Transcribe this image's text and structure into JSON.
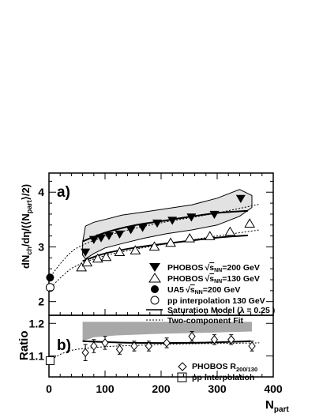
{
  "chart_data": [
    {
      "type": "scatter",
      "panel_label": "a)",
      "xlabel": "N",
      "xlabel_sub": "part",
      "ylabel": "dN",
      "ylabel_sub1": "ch",
      "ylabel_mid": "/dη/(⟨N",
      "ylabel_sub2": "part",
      "ylabel_end": "⟩/2)",
      "xlim": [
        0,
        400
      ],
      "ylim": [
        1.75,
        4.35
      ],
      "xticks": [
        0,
        100,
        200,
        300,
        400
      ],
      "yticks": [
        2,
        3,
        4
      ],
      "series": [
        {
          "name": "PHOBOS",
          "name_sqrt": "s",
          "name_sub": "NN",
          "name_tail": "=200 GeV",
          "marker": "triangle-down-filled",
          "x": [
            65,
            80,
            93,
            107,
            126,
            146,
            167,
            193,
            220,
            254,
            295,
            342
          ],
          "y": [
            2.9,
            3.13,
            3.16,
            3.2,
            3.23,
            3.31,
            3.35,
            3.43,
            3.48,
            3.54,
            3.59,
            3.88
          ]
        },
        {
          "name": "PHOBOS",
          "name_sqrt": "s",
          "name_sub": "NN",
          "name_tail": "=130 GeV",
          "marker": "triangle-up-open",
          "x": [
            58,
            68,
            87,
            102,
            126,
            154,
            188,
            217,
            251,
            287,
            323,
            358
          ],
          "y": [
            2.63,
            2.72,
            2.79,
            2.82,
            2.91,
            2.94,
            3.01,
            3.08,
            3.16,
            3.2,
            3.28,
            3.43
          ]
        },
        {
          "name": "UA5",
          "name_sqrt": "s",
          "name_sub": "NN",
          "name_tail": "=200 GeV",
          "marker": "circle-filled",
          "x": [
            2
          ],
          "y": [
            2.44
          ]
        },
        {
          "name": "pp interpolation 130 GeV",
          "marker": "circle-open",
          "x": [
            2
          ],
          "y": [
            2.26
          ]
        },
        {
          "name": "Saturation Model (λ = 0.25 )",
          "style": "solid",
          "curves": [
            {
              "x": [
                60,
                100,
                150,
                200,
                250,
                300,
                355
              ],
              "y": [
                3.1,
                3.26,
                3.39,
                3.47,
                3.55,
                3.62,
                3.66
              ]
            },
            {
              "x": [
                60,
                100,
                150,
                200,
                250,
                300,
                355
              ],
              "y": [
                2.74,
                2.88,
                2.98,
                3.05,
                3.11,
                3.17,
                3.21
              ]
            }
          ]
        },
        {
          "name": "Two-component Fit",
          "style": "dashed",
          "curves": [
            {
              "x": [
                0,
                25,
                50,
                100,
                150,
                200,
                250,
                300,
                375
              ],
              "y": [
                2.42,
                2.75,
                2.98,
                3.19,
                3.33,
                3.44,
                3.53,
                3.62,
                3.78
              ]
            },
            {
              "x": [
                0,
                25,
                50,
                100,
                150,
                200,
                250,
                300,
                375
              ],
              "y": [
                2.22,
                2.48,
                2.66,
                2.84,
                2.95,
                3.04,
                3.12,
                3.2,
                3.31
              ]
            }
          ]
        }
      ],
      "error_band": {
        "x": [
          60,
          65,
          80,
          100,
          130,
          170,
          210,
          255,
          300,
          340,
          362
        ],
        "low": [
          2.85,
          2.78,
          2.88,
          2.98,
          3.06,
          3.16,
          3.24,
          3.31,
          3.4,
          3.56,
          3.72
        ],
        "high": [
          3.08,
          3.38,
          3.45,
          3.5,
          3.58,
          3.64,
          3.7,
          3.77,
          3.89,
          4.05,
          3.94
        ]
      },
      "legend_position": "bottom-right"
    },
    {
      "type": "scatter",
      "panel_label": "b)",
      "ylabel": "Ratio",
      "xlim": [
        0,
        400
      ],
      "ylim": [
        1.035,
        1.225
      ],
      "yticks": [
        1.1,
        1.2
      ],
      "xticks": [
        0,
        100,
        200,
        300,
        400
      ],
      "series": [
        {
          "name": "PHOBOS R",
          "name_sub": "200/130",
          "marker": "diamond-open",
          "x": [
            65,
            80,
            100,
            126,
            152,
            178,
            210,
            255,
            295,
            325,
            362
          ],
          "y": [
            1.11,
            1.13,
            1.14,
            1.12,
            1.13,
            1.13,
            1.14,
            1.16,
            1.15,
            1.15,
            1.13
          ],
          "err": [
            0.025,
            0.02,
            0.02,
            0.015,
            0.015,
            0.015,
            0.015,
            0.015,
            0.015,
            0.015,
            0.015
          ]
        },
        {
          "name": "pp interpolation",
          "marker": "square-open",
          "x": [
            2
          ],
          "y": [
            1.085
          ]
        },
        {
          "name": "Saturation Model",
          "style": "solid",
          "x": [
            60,
            150,
            250,
            360
          ],
          "y": [
            1.145,
            1.14,
            1.14,
            1.145
          ]
        },
        {
          "name": "Two-component Fit",
          "style": "dashed",
          "x": [
            0,
            25,
            50,
            100,
            150,
            200,
            250,
            300,
            375
          ],
          "y": [
            1.085,
            1.108,
            1.12,
            1.128,
            1.132,
            1.135,
            1.137,
            1.138,
            1.14
          ]
        }
      ],
      "error_band": {
        "x": [
          60,
          80,
          120,
          200,
          300,
          362
        ],
        "low": [
          1.145,
          1.157,
          1.163,
          1.168,
          1.172,
          1.175
        ],
        "high": [
          1.205,
          1.205,
          1.205,
          1.205,
          1.205,
          1.205
        ]
      },
      "legend_position": "bottom-right"
    }
  ]
}
